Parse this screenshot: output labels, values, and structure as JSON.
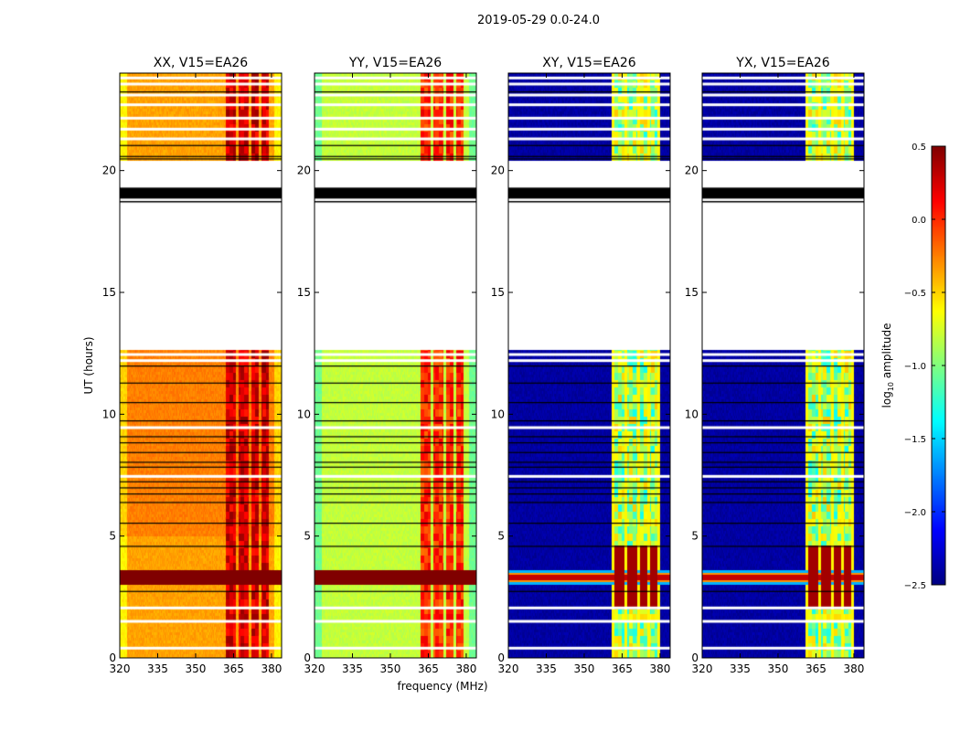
{
  "chart_data": {
    "type": "heatmap",
    "title": "2019-05-29 0.0-24.0",
    "xlabel": "frequency (MHz)",
    "ylabel": "UT (hours)",
    "xlim": [
      320,
      384
    ],
    "ylim": [
      0,
      24
    ],
    "xticks": [
      320,
      335,
      350,
      365,
      380
    ],
    "yticks": [
      0,
      5,
      10,
      15,
      20
    ],
    "colormap": "jet",
    "colorbar": {
      "label_prefix": "log",
      "label_sub": "10",
      "label_suffix": " amplitude",
      "range": [
        -2.5,
        0.5
      ],
      "ticks": [
        0.5,
        0.0,
        -0.5,
        -1.0,
        -1.5,
        -2.0,
        -2.5
      ],
      "tick_labels": [
        "0.5",
        "0.0",
        "−0.5",
        "−1.0",
        "−1.5",
        "−2.0",
        "−2.5"
      ]
    },
    "panels": [
      {
        "title": "XX, V15=EA26",
        "base_log_amp": -0.35,
        "band_log_amp": 0.25,
        "rfi_log_amp": 0.5
      },
      {
        "title": "YY, V15=EA26",
        "base_log_amp": -0.8,
        "band_log_amp": 0.0,
        "rfi_log_amp": 0.5
      },
      {
        "title": "XY, V15=EA26",
        "base_log_amp": -2.4,
        "band_log_amp": -0.9,
        "rfi_log_amp": 0.2
      },
      {
        "title": "YX, V15=EA26",
        "base_log_amp": -2.4,
        "band_log_amp": -0.9,
        "rfi_log_amp": 0.2
      }
    ],
    "strong_channels_mhz": [
      [
        362,
        366
      ],
      [
        367,
        371
      ],
      [
        372,
        375
      ],
      [
        376,
        379
      ]
    ],
    "data_segments_hours": [
      [
        0,
        12.65
      ],
      [
        20.4,
        24
      ]
    ],
    "rfi_hours": [
      3.0,
      3.6
    ],
    "flagged_black_band_hours": [
      18.85,
      19.3
    ],
    "white_gaps_hours": [
      0.4,
      1.5,
      2.05,
      7.45,
      9.45,
      12.2,
      12.45,
      21.3,
      21.7,
      22.15,
      22.7,
      23.1,
      23.55,
      23.8
    ],
    "black_lines_hours": [
      2.75,
      4.6,
      5.55,
      6.4,
      6.75,
      7.0,
      7.25,
      7.85,
      8.05,
      8.45,
      8.85,
      9.1,
      9.75,
      10.5,
      11.3,
      12.0,
      20.5,
      20.6,
      21.05,
      23.25
    ]
  }
}
